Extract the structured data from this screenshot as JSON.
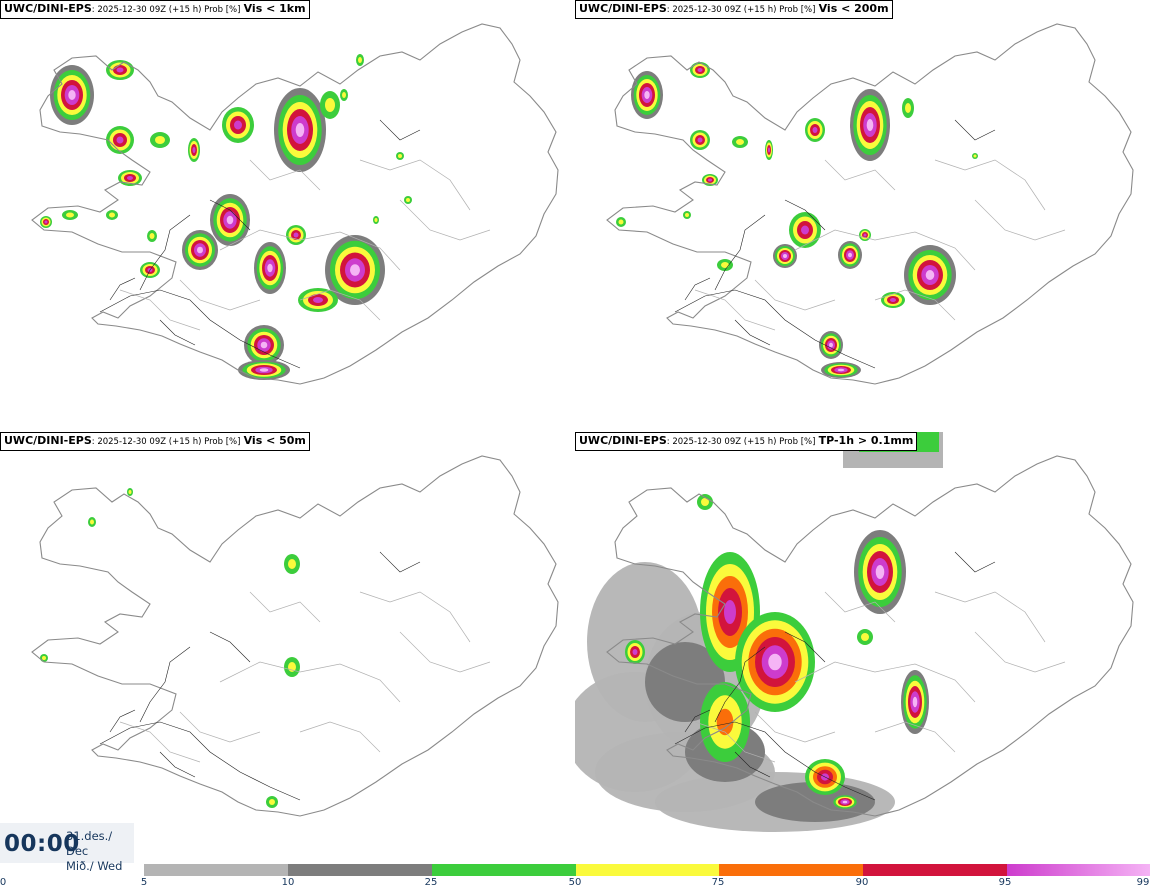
{
  "panels": [
    {
      "model": "UWC/DINI-EPS",
      "meta": ": 2025-12-30 09Z (+15 h) Prob [%]",
      "variable": "Vis < 1km"
    },
    {
      "model": "UWC/DINI-EPS",
      "meta": ": 2025-12-30 09Z (+15 h) Prob [%]",
      "variable": "Vis < 200m"
    },
    {
      "model": "UWC/DINI-EPS",
      "meta": ": 2025-12-30 09Z (+15 h) Prob [%]",
      "variable": "Vis < 50m"
    },
    {
      "model": "UWC/DINI-EPS",
      "meta": ": 2025-12-30 09Z (+15 h) Prob [%]",
      "variable": "TP-1h > 0.1mm"
    }
  ],
  "valid_time": {
    "time": "00:00",
    "date_line1": "31.des./ Dec",
    "date_line2": "Mið./ Wed"
  },
  "colorbar": {
    "ticks": [
      "0",
      "5",
      "10",
      "25",
      "50",
      "75",
      "90",
      "95",
      "99"
    ],
    "colors": [
      "#b4b4b4",
      "#7d7d7d",
      "#3ccd3c",
      "#fafa3c",
      "#fa6e0a",
      "#d2143c",
      "#cd3ccd"
    ],
    "last_color_to": "#f5b4f5"
  },
  "map_colors": {
    "coast": "#8a8a8a",
    "roads": "#222222",
    "p5": "#b4b4b4",
    "p10": "#7d7d7d",
    "p25": "#3ccd3c",
    "p50": "#fafa3c",
    "p75": "#fa6e0a",
    "p90": "#d2143c",
    "p95": "#cd3ccd",
    "p99": "#f5b4f5"
  }
}
